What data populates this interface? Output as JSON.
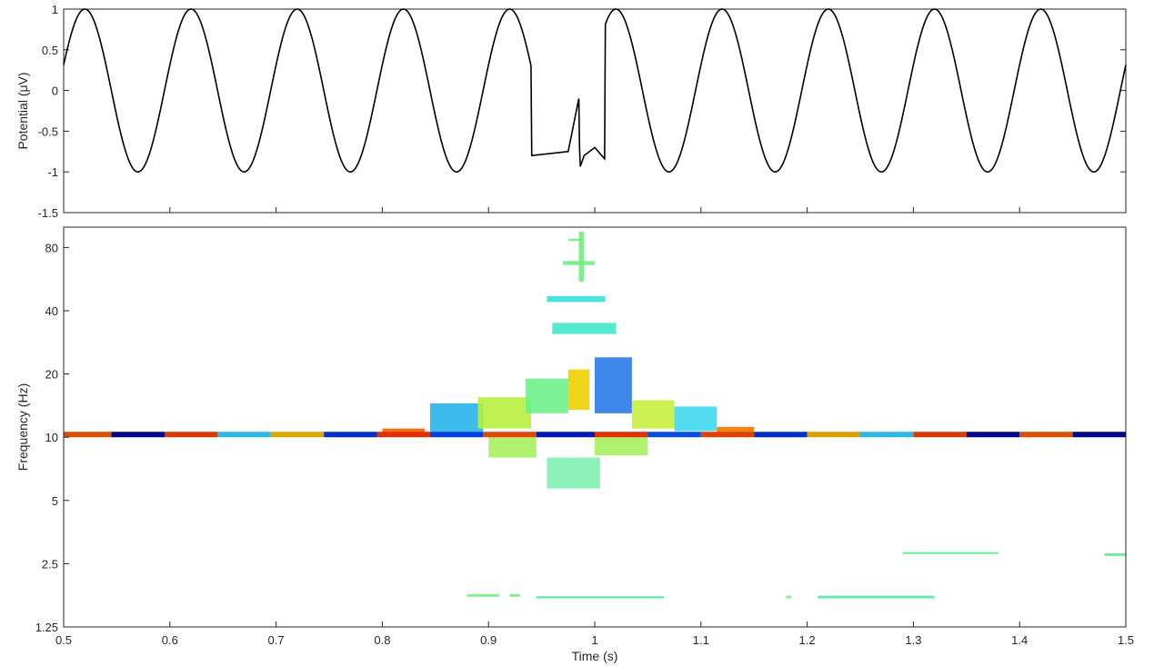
{
  "chart_data": [
    {
      "type": "line",
      "panel": "waveform",
      "ylabel": "Potential (μV)",
      "xlim": [
        0.5,
        1.5
      ],
      "ylim": [
        -1.5,
        1
      ],
      "yticks": [
        "1",
        "0.5",
        "0",
        "-0.5",
        "-1",
        "-1.5"
      ],
      "ytick_values": [
        1,
        0.5,
        0,
        -0.5,
        -1,
        -1.5
      ],
      "line_color": "#000000",
      "series": [
        {
          "signal": "10 Hz sinusoid, amplitude 1 μV, with transient at t ≈ 0.985 s",
          "frequency_hz": 10,
          "amplitude": 1,
          "phase_rad": 0.32,
          "transient": {
            "x": [
              0.94,
              0.975,
              0.985,
              0.986,
              0.99,
              1.0,
              1.01
            ],
            "y": [
              -0.8,
              -0.75,
              -0.1,
              -0.95,
              -0.8,
              -0.7,
              -0.85
            ]
          }
        }
      ]
    },
    {
      "type": "heatmap",
      "panel": "time-frequency",
      "xlabel": "Time (s)",
      "ylabel": "Frequency (Hz)",
      "xlim": [
        0.5,
        1.5
      ],
      "ylim": [
        1.25,
        100
      ],
      "yscale": "log",
      "xticks": [
        "0.5",
        "0.6",
        "0.7",
        "0.8",
        "0.9",
        "1",
        "1.1",
        "1.2",
        "1.3",
        "1.4",
        "1.5"
      ],
      "xtick_values": [
        0.5,
        0.6,
        0.7,
        0.8,
        0.9,
        1.0,
        1.1,
        1.2,
        1.3,
        1.4,
        1.5
      ],
      "yticks": [
        "80",
        "40",
        "20",
        "10",
        "5",
        "2.5",
        "1.25"
      ],
      "ytick_values": [
        80,
        40,
        20,
        10,
        5,
        2.5,
        1.25
      ],
      "colormap": [
        "#00008f",
        "#0000ff",
        "#00ffff",
        "#80ff80",
        "#ffff00",
        "#ff0000",
        "#800000"
      ],
      "main_band_hz": 10.3,
      "main_band_pattern": [
        {
          "x0": 0.5,
          "x1": 0.545,
          "color": "#d94f00"
        },
        {
          "x0": 0.545,
          "x1": 0.595,
          "color": "#00058a"
        },
        {
          "x0": 0.595,
          "x1": 0.645,
          "color": "#d93a00"
        },
        {
          "x0": 0.645,
          "x1": 0.695,
          "color": "#2bb8e8"
        },
        {
          "x0": 0.695,
          "x1": 0.745,
          "color": "#d9a800"
        },
        {
          "x0": 0.745,
          "x1": 0.795,
          "color": "#0030c8"
        },
        {
          "x0": 0.795,
          "x1": 0.845,
          "color": "#e03000"
        },
        {
          "x0": 0.845,
          "x1": 0.895,
          "color": "#0040e0"
        },
        {
          "x0": 0.895,
          "x1": 0.945,
          "color": "#e04800"
        },
        {
          "x0": 0.945,
          "x1": 1.0,
          "color": "#0018b8"
        },
        {
          "x0": 1.0,
          "x1": 1.05,
          "color": "#e03000"
        },
        {
          "x0": 1.05,
          "x1": 1.1,
          "color": "#0050e0"
        },
        {
          "x0": 1.1,
          "x1": 1.15,
          "color": "#e04000"
        },
        {
          "x0": 1.15,
          "x1": 1.2,
          "color": "#0030c8"
        },
        {
          "x0": 1.2,
          "x1": 1.25,
          "color": "#d9a000"
        },
        {
          "x0": 1.25,
          "x1": 1.3,
          "color": "#2bb8e8"
        },
        {
          "x0": 1.3,
          "x1": 1.35,
          "color": "#d93a00"
        },
        {
          "x0": 1.35,
          "x1": 1.4,
          "color": "#00058a"
        },
        {
          "x0": 1.4,
          "x1": 1.45,
          "color": "#d94f00"
        },
        {
          "x0": 1.45,
          "x1": 1.5,
          "color": "#00058a"
        }
      ],
      "blobs": [
        {
          "t0": 0.845,
          "t1": 0.895,
          "f0": 10.6,
          "f1": 14.5,
          "color": "#28b4e8"
        },
        {
          "t0": 0.89,
          "t1": 0.94,
          "f0": 11.0,
          "f1": 15.5,
          "color": "#b8f040"
        },
        {
          "t0": 0.935,
          "t1": 0.975,
          "f0": 13.0,
          "f1": 19.0,
          "color": "#6ef08a"
        },
        {
          "t0": 0.975,
          "t1": 0.995,
          "f0": 13.5,
          "f1": 21.0,
          "color": "#f0d000"
        },
        {
          "t0": 1.0,
          "t1": 1.035,
          "f0": 13.0,
          "f1": 24.0,
          "color": "#2a7ae8"
        },
        {
          "t0": 1.035,
          "t1": 1.075,
          "f0": 11.0,
          "f1": 15.0,
          "color": "#c8f040"
        },
        {
          "t0": 1.075,
          "t1": 1.115,
          "f0": 10.7,
          "f1": 14.0,
          "color": "#40d8f0"
        },
        {
          "t0": 1.115,
          "t1": 1.15,
          "f0": 10.4,
          "f1": 11.2,
          "color": "#f07800"
        },
        {
          "t0": 0.8,
          "t1": 0.84,
          "f0": 10.4,
          "f1": 11.0,
          "color": "#f06000"
        },
        {
          "t0": 0.9,
          "t1": 0.945,
          "f0": 8.0,
          "f1": 10.0,
          "color": "#a8f060"
        },
        {
          "t0": 1.0,
          "t1": 1.05,
          "f0": 8.2,
          "f1": 10.0,
          "color": "#a8f060"
        },
        {
          "t0": 0.955,
          "t1": 1.005,
          "f0": 5.7,
          "f1": 8.0,
          "color": "#80f0b0"
        },
        {
          "t0": 0.96,
          "t1": 1.02,
          "f0": 31.0,
          "f1": 35.0,
          "color": "#40e8c8"
        },
        {
          "t0": 0.955,
          "t1": 1.01,
          "f0": 44.0,
          "f1": 47.0,
          "color": "#38e0d8"
        },
        {
          "t0": 0.97,
          "t1": 1.0,
          "f0": 66.0,
          "f1": 69.0,
          "color": "#70f080"
        },
        {
          "t0": 0.975,
          "t1": 0.99,
          "f0": 86.0,
          "f1": 88.0,
          "color": "#70f080"
        },
        {
          "t0": 0.985,
          "t1": 0.99,
          "f0": 55.0,
          "f1": 95.0,
          "color": "#70f080"
        },
        {
          "t0": 0.88,
          "t1": 0.91,
          "f0": 1.74,
          "f1": 1.79,
          "color": "#70f080"
        },
        {
          "t0": 0.92,
          "t1": 0.93,
          "f0": 1.74,
          "f1": 1.79,
          "color": "#70f080"
        },
        {
          "t0": 0.945,
          "t1": 1.065,
          "f0": 1.71,
          "f1": 1.75,
          "color": "#50e8a0"
        },
        {
          "t0": 1.18,
          "t1": 1.185,
          "f0": 1.71,
          "f1": 1.76,
          "color": "#70f080"
        },
        {
          "t0": 1.21,
          "t1": 1.32,
          "f0": 1.71,
          "f1": 1.76,
          "color": "#50e8a0"
        },
        {
          "t0": 1.29,
          "t1": 1.38,
          "f0": 2.78,
          "f1": 2.84,
          "color": "#60ec90"
        },
        {
          "t0": 1.48,
          "t1": 1.5,
          "f0": 2.72,
          "f1": 2.8,
          "color": "#60ec90"
        }
      ]
    }
  ]
}
